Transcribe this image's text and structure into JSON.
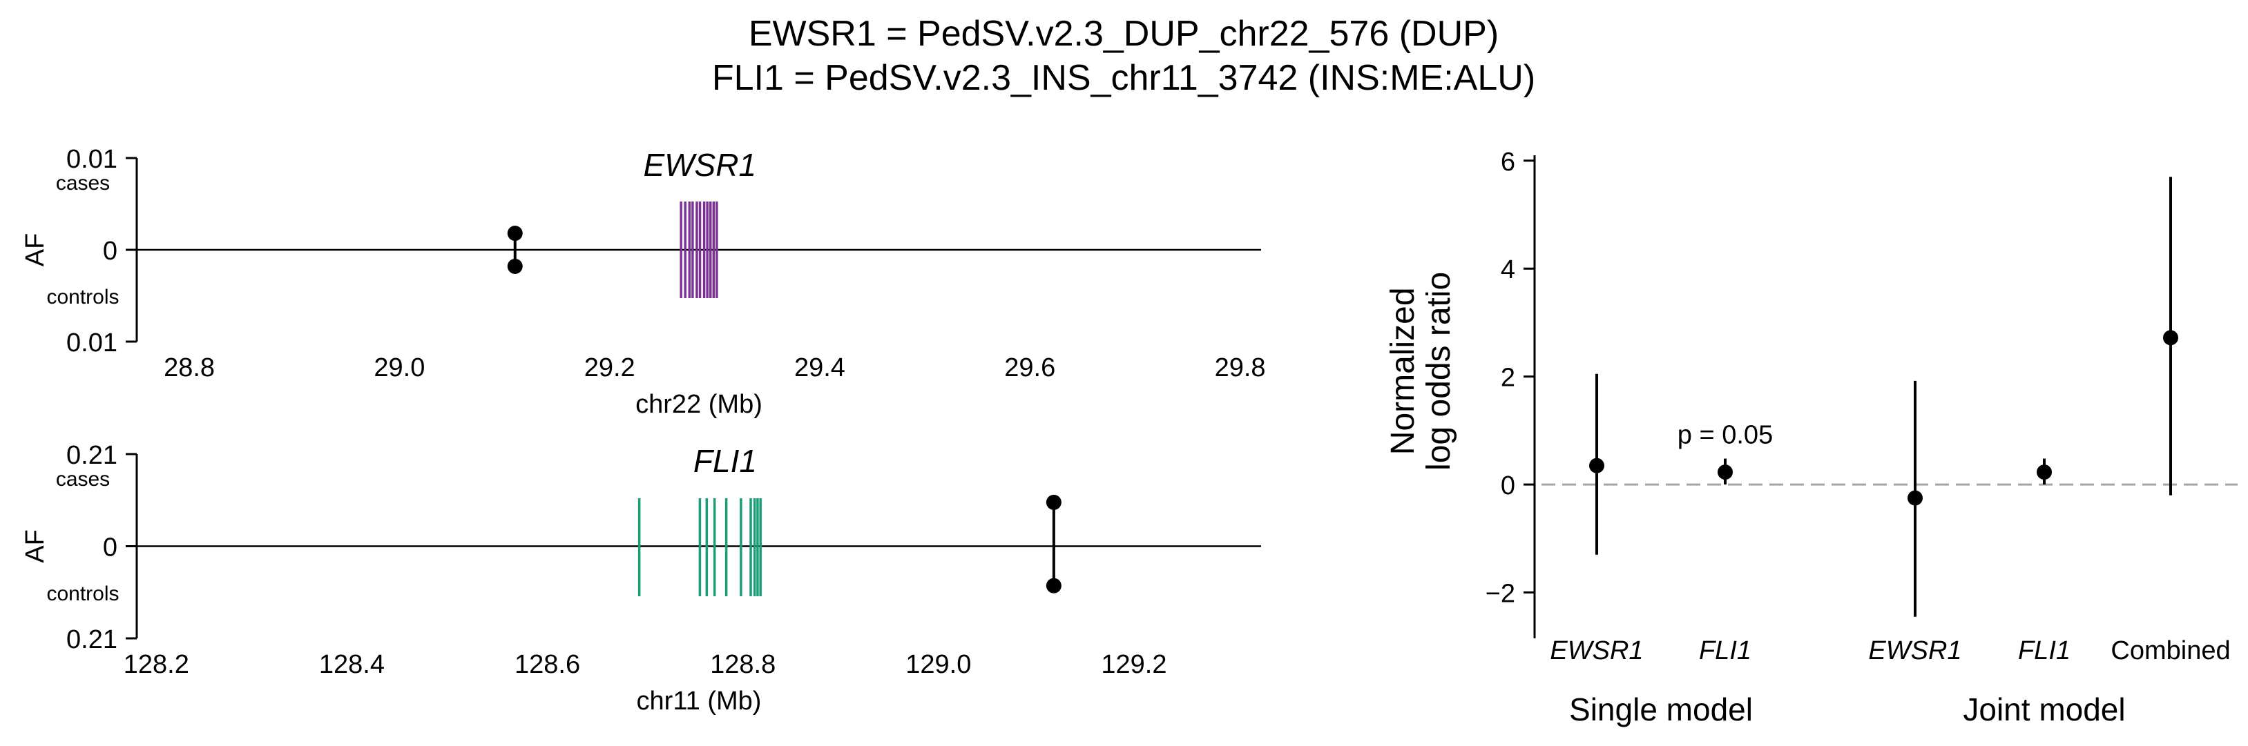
{
  "title": {
    "line1": "EWSR1 = PedSV.v2.3_DUP_chr22_576 (DUP)",
    "line2": "FLI1 = PedSV.v2.3_INS_chr11_3742 (INS:ME:ALU)"
  },
  "colors": {
    "ewsr1_gene": "#7B3294",
    "fli1_gene": "#1A9E77",
    "points": "#000000",
    "reference_line": "#A6A6A6"
  },
  "chart_data": [
    {
      "type": "scatter",
      "panel": "EWSR1 locus",
      "gene_label": "EWSR1",
      "xlabel": "chr22 (Mb)",
      "ylabel": "AF",
      "xlim": [
        28.75,
        29.82
      ],
      "ylim": [
        -0.01,
        0.01
      ],
      "x_ticks": [
        "28.8",
        "29.0",
        "29.2",
        "29.4",
        "29.6",
        "29.8"
      ],
      "y_ticks": [
        "0.01",
        "0",
        "0.01"
      ],
      "y_tick_sublabels": {
        "top": "cases",
        "bottom": "controls"
      },
      "gene_exons_mb": [
        29.268,
        29.272,
        29.276,
        29.279,
        29.283,
        29.286,
        29.29,
        29.293,
        29.296,
        29.299,
        29.302
      ],
      "gene_exon_color": "#7B3294",
      "variant": {
        "position_mb": 29.11,
        "af_cases": 0.0018,
        "af_controls": 0.0018
      }
    },
    {
      "type": "scatter",
      "panel": "FLI1 locus",
      "gene_label": "FLI1",
      "xlabel": "chr11 (Mb)",
      "ylabel": "AF",
      "xlim": [
        128.18,
        129.33
      ],
      "ylim": [
        -0.21,
        0.21
      ],
      "x_ticks": [
        "128.2",
        "128.4",
        "128.6",
        "128.8",
        "129.0",
        "129.2"
      ],
      "y_ticks": [
        "0.21",
        "0",
        "0.21"
      ],
      "y_tick_sublabels": {
        "top": "cases",
        "bottom": "controls"
      },
      "gene_exons_mb": [
        128.694,
        128.756,
        128.763,
        128.771,
        128.783,
        128.798,
        128.808,
        128.812,
        128.815,
        128.818
      ],
      "gene_exon_color": "#1A9E77",
      "variant": {
        "position_mb": 129.118,
        "af_cases": 0.1,
        "af_controls": 0.09
      }
    },
    {
      "type": "scatter",
      "panel": "Normalized log odds ratio",
      "ylabel": "Normalized\nlog odds ratio",
      "ylim": [
        -2.85,
        6.1
      ],
      "y_ticks": [
        6,
        4,
        2,
        0,
        -2
      ],
      "reference_y": 0,
      "groups": [
        "Single model",
        "Joint model"
      ],
      "annotation": "p = 0.05",
      "points": [
        {
          "label": "EWSR1",
          "group": "Single model",
          "italic": true,
          "estimate": 0.35,
          "lower": -1.3,
          "upper": 2.05
        },
        {
          "label": "FLI1",
          "group": "Single model",
          "italic": true,
          "estimate": 0.23,
          "lower": 0.0,
          "upper": 0.48,
          "annotation": "p = 0.05"
        },
        {
          "label": "EWSR1",
          "group": "Joint model",
          "italic": true,
          "estimate": -0.25,
          "lower": -2.45,
          "upper": 1.92
        },
        {
          "label": "FLI1",
          "group": "Joint model",
          "italic": true,
          "estimate": 0.23,
          "lower": 0.0,
          "upper": 0.48
        },
        {
          "label": "Combined",
          "group": "Joint model",
          "italic": false,
          "estimate": 2.72,
          "lower": -0.2,
          "upper": 5.7
        }
      ]
    }
  ]
}
